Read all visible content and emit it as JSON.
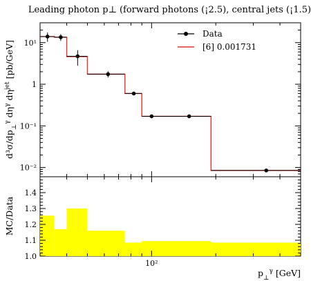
{
  "chart_data": [
    {
      "type": "line",
      "title": "Leading photon p⊥ (forward photons (¡2.5), central jets (¡1.5))",
      "ylabel": "d³σ/dp⊥γ dηγ dηjet [pb/GeV]",
      "ylabel_parts": {
        "main": "d³σ/dp",
        "sub1": "⊥",
        "sup1": "γ",
        "mid": " dη",
        "sup2": "γ",
        "tail": " dη",
        "sup3": "jet",
        "unit": " [pb/GeV]"
      },
      "xscale": "log",
      "yscale": "log",
      "xlim": [
        30,
        500
      ],
      "ylim": [
        0.006,
        30
      ],
      "x_tick_labels": [
        {
          "value": 100,
          "label": "10²"
        }
      ],
      "y_tick_labels": [
        {
          "value": 10,
          "label": "10¹"
        },
        {
          "value": 1,
          "label": "1"
        },
        {
          "value": 0.1,
          "label": "10⁻¹"
        },
        {
          "value": 0.01,
          "label": "10⁻²"
        }
      ],
      "legend": {
        "position": "top-right",
        "entries": [
          {
            "name": "Data",
            "color": "#000000",
            "style": "marker"
          },
          {
            "name": "[6] 0.001731",
            "color": "#e8322b",
            "style": "line"
          }
        ]
      },
      "grid": false,
      "bin_edges": [
        30,
        35,
        40,
        50,
        75,
        90,
        110,
        190,
        500
      ],
      "series": [
        {
          "name": "Data",
          "color": "#000000",
          "x": [
            32.5,
            37.5,
            45,
            62.5,
            82.5,
            100,
            150,
            345
          ],
          "y": [
            14.0,
            13.5,
            4.7,
            1.75,
            0.6,
            0.17,
            0.17,
            0.0085
          ],
          "yerr": [
            3.5,
            2.5,
            1.9,
            0.3,
            0.05,
            0.01,
            0.01,
            0.0006
          ]
        },
        {
          "name": "[6] 0.001731",
          "color": "#e8322b",
          "values": [
            14.0,
            13.5,
            4.6,
            1.75,
            0.6,
            0.17,
            0.17,
            0.0085
          ]
        }
      ]
    },
    {
      "type": "area",
      "ylabel": "MC/Data",
      "xlabel": "p⊥γ [GeV]",
      "xlabel_parts": {
        "main": "p",
        "sub": "⊥",
        "sup": "γ",
        "unit": " [GeV]"
      },
      "xscale": "log",
      "xlim": [
        30,
        500
      ],
      "ylim": [
        1.0,
        1.5
      ],
      "y_tick_labels": [
        1.0,
        1.1,
        1.2,
        1.3,
        1.4
      ],
      "band_color": "#ffff00",
      "bin_edges": [
        30,
        35,
        40,
        50,
        75,
        90,
        110,
        190,
        500
      ],
      "band_low": [
        1.0,
        1.0,
        1.0,
        1.0,
        1.0,
        1.0,
        1.0,
        1.0
      ],
      "band_high": [
        1.255,
        1.17,
        1.3,
        1.16,
        1.085,
        1.095,
        1.095,
        1.085
      ]
    }
  ]
}
